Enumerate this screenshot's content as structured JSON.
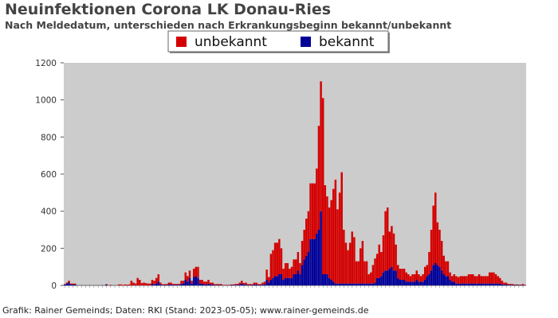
{
  "chart_data": {
    "type": "bar",
    "stacked": true,
    "title": "Neuinfektionen Corona LK Donau-Ries",
    "subtitle": "Nach Meldedatum, unterschieden nach Erkrankungsbeginn bekannt/unbekannt",
    "xlabel": "",
    "ylabel": "",
    "ylim": [
      0,
      1200
    ],
    "yticks": [
      0,
      200,
      400,
      600,
      800,
      1000,
      1200
    ],
    "grid": false,
    "legend_position": "top-center",
    "x_unit": "weeks (approx.)",
    "x_tick_labels_note": "dense overlapping rotated date labels (illegible)",
    "series": [
      {
        "name": "unbekannt",
        "color": "#d40000",
        "values": [
          2,
          5,
          10,
          5,
          5,
          5,
          0,
          0,
          0,
          0,
          0,
          0,
          0,
          0,
          0,
          0,
          0,
          0,
          0,
          0,
          2,
          0,
          3,
          0,
          0,
          0,
          5,
          5,
          3,
          5,
          4,
          5,
          25,
          15,
          10,
          40,
          30,
          12,
          15,
          12,
          10,
          10,
          20,
          20,
          30,
          40,
          10,
          3,
          5,
          5,
          10,
          10,
          5,
          5,
          5,
          5,
          15,
          15,
          40,
          30,
          40,
          15,
          45,
          50,
          60,
          20,
          20,
          15,
          15,
          20,
          10,
          10,
          5,
          5,
          5,
          5,
          2,
          2,
          2,
          2,
          3,
          3,
          5,
          5,
          10,
          15,
          8,
          10,
          5,
          5,
          5,
          10,
          10,
          5,
          5,
          10,
          15,
          55,
          30,
          140,
          150,
          180,
          180,
          190,
          140,
          60,
          80,
          80,
          50,
          60,
          80,
          80,
          100,
          60,
          130,
          160,
          200,
          220,
          300,
          300,
          300,
          350,
          560,
          700,
          950,
          480,
          420,
          380,
          430,
          500,
          560,
          400,
          490,
          600,
          290,
          220,
          180,
          220,
          280,
          250,
          120,
          120,
          190,
          230,
          120,
          120,
          50,
          60,
          100,
          130,
          130,
          180,
          130,
          200,
          320,
          340,
          200,
          220,
          200,
          140,
          70,
          60,
          60,
          60,
          50,
          40,
          30,
          40,
          40,
          50,
          40,
          30,
          40,
          70,
          60,
          120,
          220,
          320,
          380,
          230,
          200,
          160,
          100,
          80,
          80,
          40,
          30,
          40,
          40,
          35,
          40,
          40,
          40,
          40,
          50,
          50,
          50,
          40,
          40,
          50,
          40,
          40,
          40,
          40,
          60,
          60,
          60,
          50,
          40,
          30,
          20,
          10,
          10,
          5,
          5,
          5,
          3,
          3,
          2,
          2,
          5,
          2
        ],
        "values_note": "approximate values read from the bar heights; last value corresponds to the rightmost bar"
      },
      {
        "name": "bekannt",
        "color": "#000099",
        "values": [
          5,
          10,
          15,
          5,
          5,
          5,
          0,
          0,
          0,
          0,
          0,
          0,
          0,
          0,
          0,
          0,
          0,
          0,
          0,
          0,
          5,
          0,
          0,
          0,
          0,
          0,
          0,
          0,
          0,
          0,
          0,
          0,
          0,
          0,
          0,
          0,
          0,
          0,
          0,
          0,
          0,
          0,
          10,
          5,
          10,
          20,
          5,
          3,
          2,
          2,
          5,
          5,
          3,
          3,
          3,
          3,
          10,
          10,
          30,
          20,
          40,
          10,
          45,
          50,
          40,
          10,
          10,
          5,
          5,
          10,
          5,
          5,
          2,
          2,
          2,
          2,
          1,
          1,
          1,
          1,
          2,
          2,
          3,
          3,
          5,
          10,
          5,
          5,
          2,
          2,
          2,
          5,
          5,
          2,
          2,
          5,
          5,
          30,
          15,
          30,
          40,
          50,
          50,
          60,
          60,
          30,
          40,
          40,
          40,
          40,
          60,
          60,
          80,
          60,
          110,
          140,
          160,
          180,
          250,
          250,
          250,
          280,
          300,
          400,
          60,
          60,
          60,
          40,
          30,
          20,
          10,
          10,
          10,
          10,
          10,
          10,
          10,
          10,
          10,
          10,
          10,
          10,
          10,
          10,
          10,
          10,
          10,
          10,
          10,
          15,
          40,
          40,
          50,
          70,
          80,
          80,
          90,
          100,
          80,
          80,
          40,
          30,
          30,
          30,
          20,
          20,
          20,
          20,
          20,
          30,
          20,
          20,
          20,
          30,
          50,
          60,
          80,
          110,
          120,
          110,
          100,
          80,
          60,
          50,
          50,
          30,
          20,
          20,
          10,
          10,
          10,
          10,
          10,
          10,
          10,
          10,
          10,
          10,
          10,
          10,
          10,
          10,
          10,
          10,
          10,
          10,
          10,
          10,
          10,
          10,
          5,
          5,
          5,
          3,
          3,
          2,
          2,
          2,
          2,
          2,
          2,
          1
        ]
      }
    ]
  },
  "footer": {
    "credit": "Grafik: Rainer Gemeinds; Daten: RKI (Stand: 2023-05-05); www.rainer-gemeinds.de"
  }
}
